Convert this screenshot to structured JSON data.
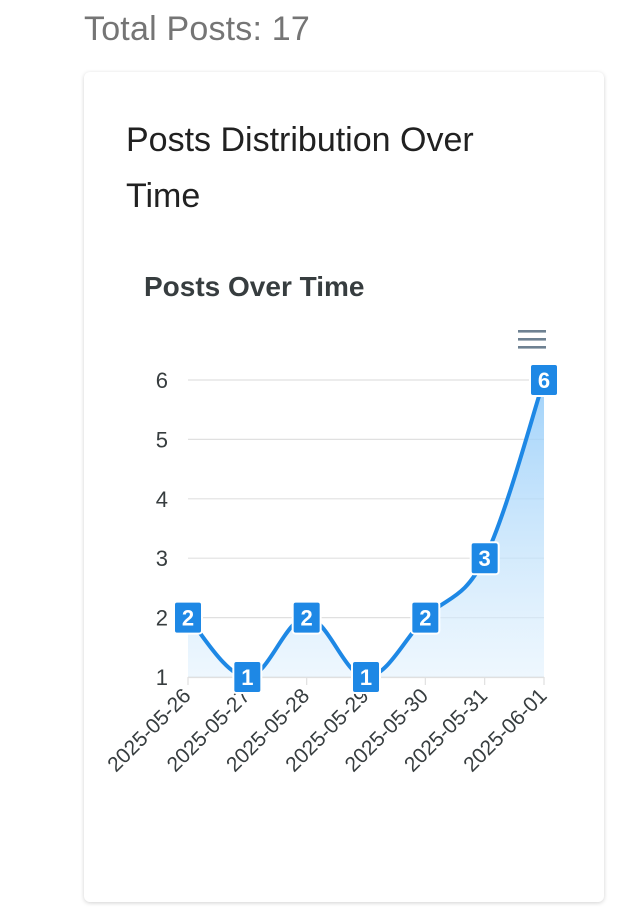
{
  "header": {
    "total_posts": "Total Posts: 17"
  },
  "card": {
    "title": "Posts Distribution Over Time"
  },
  "chart_menu_icon": "hamburger-menu-icon",
  "colors": {
    "line": "#1E88E5",
    "area_top": "#90CAF9",
    "area_bottom": "#E3F2FD",
    "label_bg": "#1E88E5",
    "grid": "#E0E0E0",
    "text": "#373D3F"
  },
  "chart_data": {
    "type": "area",
    "title": "Posts Over Time",
    "categories": [
      "2025-05-26",
      "2025-05-27",
      "2025-05-28",
      "2025-05-29",
      "2025-05-30",
      "2025-05-31",
      "2025-06-01"
    ],
    "series": [
      {
        "values": [
          2,
          1,
          2,
          1,
          2,
          3,
          6
        ]
      }
    ],
    "ylim": [
      1,
      6
    ],
    "yticks": [
      1,
      2,
      3,
      4,
      5,
      6
    ],
    "xlabel": "",
    "ylabel": "",
    "grid": true,
    "data_labels": true,
    "curve": "smooth"
  }
}
